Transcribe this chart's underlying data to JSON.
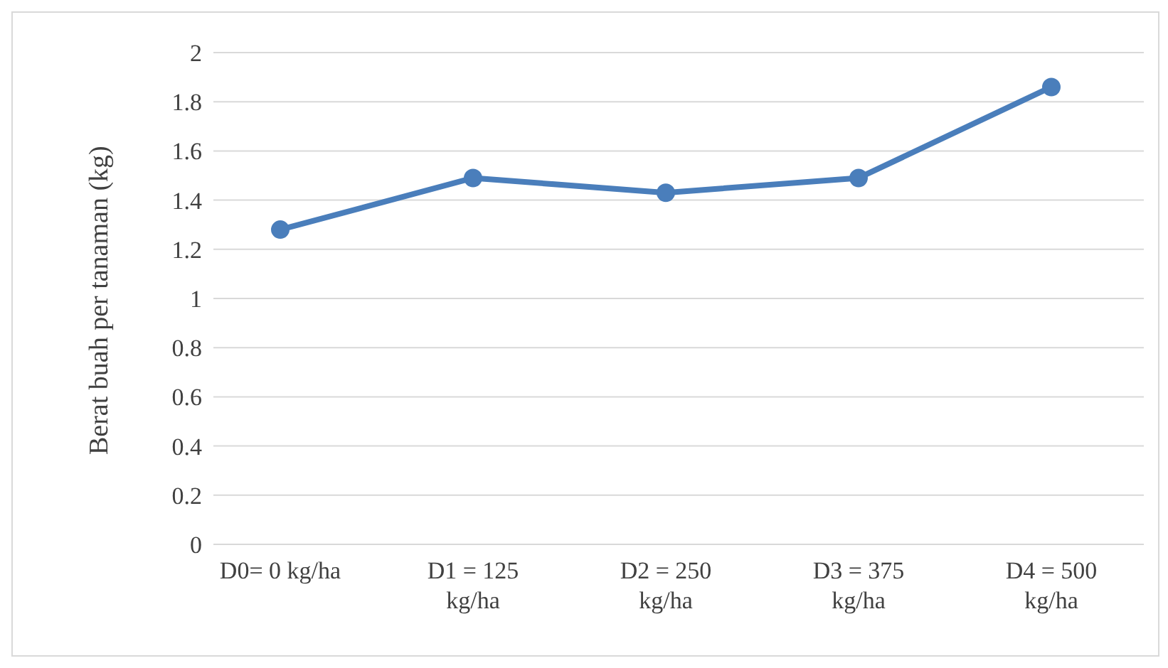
{
  "chart_data": {
    "type": "line",
    "ylabel": "Berat buah per tanaman (kg)",
    "categories": [
      "D0= 0 kg/ha",
      "D1 = 125 kg/ha",
      "D2 = 250 kg/ha",
      "D3 = 375 kg/ha",
      "D4 = 500 kg/ha"
    ],
    "series": [
      {
        "color": "#4a7ebb",
        "values": [
          1.28,
          1.49,
          1.43,
          1.49,
          1.86
        ]
      }
    ],
    "ylim": [
      0,
      2
    ],
    "yticks": [
      0,
      0.2,
      0.4,
      0.6,
      0.8,
      1,
      1.2,
      1.4,
      1.6,
      1.8,
      2
    ],
    "grid": "y",
    "marker": "circle",
    "line_style": "solid"
  }
}
